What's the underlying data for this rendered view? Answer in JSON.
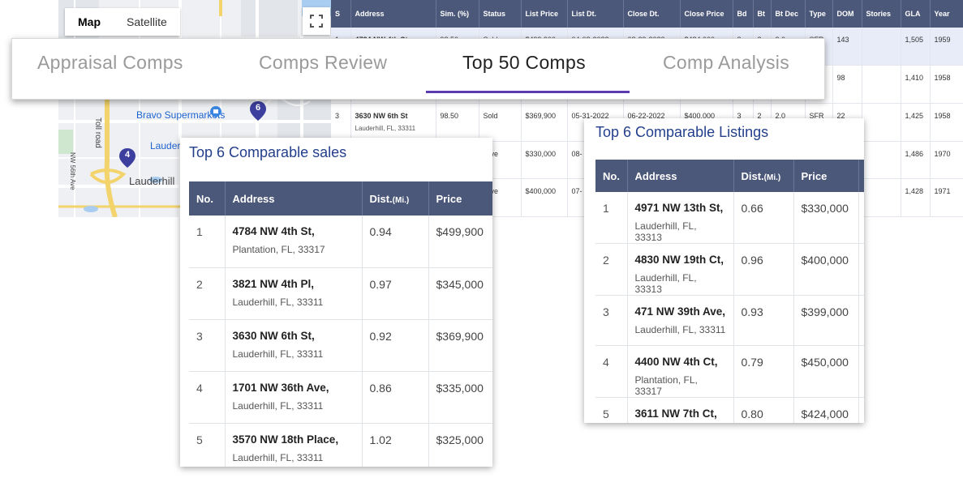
{
  "map": {
    "tabs": [
      "Map",
      "Satellite"
    ],
    "labels": {
      "bravo": "Bravo Supermarkets",
      "lauderhill_top": "Lauderh",
      "lauderhill": "Lauderhill",
      "toll_road": "Toll road",
      "nw56": "NW 56th Ave"
    },
    "markers": [
      "6",
      "4"
    ]
  },
  "results_table": {
    "columns": [
      "S",
      "Address",
      "Sim. (%)",
      "Status",
      "List Price",
      "List Dt.",
      "Close Dt.",
      "Close Price",
      "Bd",
      "Bt",
      "Bt Dec",
      "Type",
      "DOM",
      "Stories",
      "GLA",
      "Year"
    ],
    "rows": [
      {
        "s": "1",
        "street": "4784 NW 4th St",
        "city": "",
        "sim": "98.50",
        "status": "Sold",
        "list_price": "$499,900",
        "list_dt": "04-08-2022",
        "close_dt": "08-29-2022",
        "close_price": "$484,000",
        "bd": "3",
        "bt": "2",
        "bt_dec": "2.0",
        "type": "SFR",
        "dom": "143",
        "stories": "",
        "gla": "1,505",
        "year": "1959"
      },
      {
        "s": "",
        "street": "",
        "city": "",
        "sim": "",
        "status": "",
        "list_price": "",
        "list_dt": "",
        "close_dt": "",
        "close_price": "",
        "bd": "",
        "bt": "",
        "bt_dec": "",
        "type": "",
        "dom": "98",
        "stories": "",
        "gla": "1,410",
        "year": "1958"
      },
      {
        "s": "3",
        "street": "3630 NW 6th St",
        "city": "Lauderhill, FL, 33311",
        "sim": "98.50",
        "status": "Sold",
        "list_price": "$369,900",
        "list_dt": "05-31-2022",
        "close_dt": "06-22-2022",
        "close_price": "$400,000",
        "bd": "3",
        "bt": "2",
        "bt_dec": "2.0",
        "type": "SFR",
        "dom": "22",
        "stories": "",
        "gla": "1,425",
        "year": "1958"
      },
      {
        "s": "",
        "street": "",
        "city": "",
        "sim": "",
        "status": "ctive",
        "list_price": "$330,000",
        "list_dt": "08-",
        "close_dt": "",
        "close_price": "",
        "bd": "",
        "bt": "",
        "bt_dec": "",
        "type": "",
        "dom": "",
        "stories": "",
        "gla": "1,486",
        "year": "1970"
      },
      {
        "s": "",
        "street": "",
        "city": "",
        "sim": "",
        "status": "ctive",
        "list_price": "$400,000",
        "list_dt": "07-",
        "close_dt": "",
        "close_price": "",
        "bd": "",
        "bt": "",
        "bt_dec": "",
        "type": "",
        "dom": "",
        "stories": "",
        "gla": "1,428",
        "year": "1971"
      }
    ]
  },
  "main_tabs": [
    {
      "label": "Appraisal Comps",
      "active": false
    },
    {
      "label": "Comps Review",
      "active": false
    },
    {
      "label": "Top 50 Comps",
      "active": true
    },
    {
      "label": "Comp Analysis",
      "active": false
    }
  ],
  "sales_card": {
    "title": "Top 6 Comparable sales",
    "headers": {
      "no": "No.",
      "address": "Address",
      "dist": "Dist.",
      "dist_unit": "(Mi.)",
      "price": "Price"
    },
    "rows": [
      {
        "no": "1",
        "street": "4784 NW 4th St,",
        "city": "Plantation, FL, 33317",
        "dist": "0.94",
        "price": "$499,900"
      },
      {
        "no": "2",
        "street": "3821 NW 4th Pl,",
        "city": "Lauderhill, FL, 33311",
        "dist": "0.97",
        "price": "$345,000"
      },
      {
        "no": "3",
        "street": "3630 NW 6th St,",
        "city": "Lauderhill, FL, 33311",
        "dist": "0.92",
        "price": "$369,900"
      },
      {
        "no": "4",
        "street": "1701 NW 36th Ave,",
        "city": "Lauderhill, FL, 33311",
        "dist": "0.86",
        "price": "$335,000"
      },
      {
        "no": "5",
        "street": "3570 NW 18th Place,",
        "city": "Lauderhill, FL, 33311",
        "dist": "1.02",
        "price": "$325,000"
      }
    ]
  },
  "listings_card": {
    "title": "Top 6 Comparable Listings",
    "headers": {
      "no": "No.",
      "address": "Address",
      "dist": "Dist.",
      "dist_unit": "(Mi.)",
      "price": "Price"
    },
    "rows": [
      {
        "no": "1",
        "street": "4971 NW 13th St,",
        "city": "Lauderhill, FL, 33313",
        "dist": "0.66",
        "price": "$330,000"
      },
      {
        "no": "2",
        "street": "4830 NW 19th Ct,",
        "city": "Lauderhill, FL, 33313",
        "dist": "0.96",
        "price": "$400,000"
      },
      {
        "no": "3",
        "street": "471 NW 39th Ave,",
        "city": "Lauderhill, FL, 33311",
        "dist": "0.93",
        "price": "$399,000"
      },
      {
        "no": "4",
        "street": "4400 NW 4th Ct,",
        "city": "Plantation, FL, 33317",
        "dist": "0.79",
        "price": "$450,000"
      },
      {
        "no": "5",
        "street": "3611 NW 7th Ct,",
        "city": "",
        "dist": "0.80",
        "price": "$424,000"
      }
    ]
  },
  "colors": {
    "header": "#4c5879",
    "title": "#233f8c",
    "tab_underline": "#5b3bb0",
    "map_pin": "#3c3f9e"
  }
}
